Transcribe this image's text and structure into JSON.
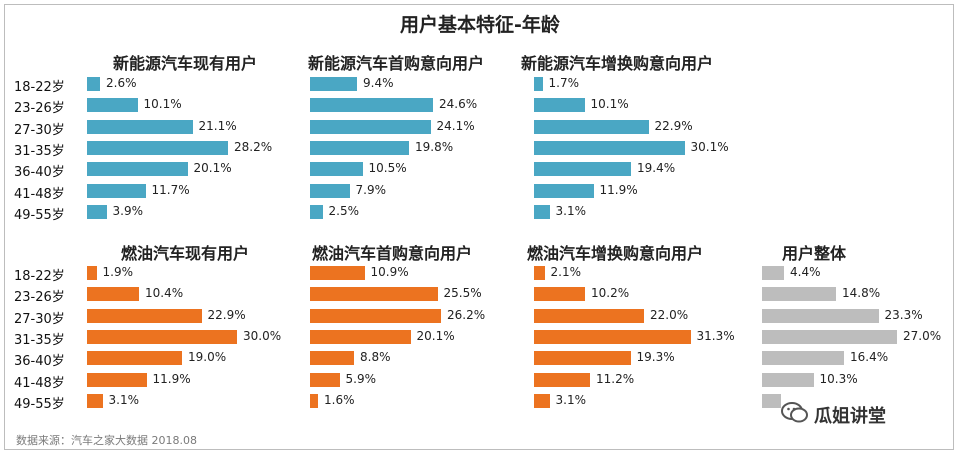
{
  "title": "用户基本特征-年龄",
  "source": "数据来源：汽车之家大数据 2018.08",
  "watermark": "瓜姐讲堂",
  "chart_data": [
    {
      "type": "bar",
      "title": "新能源汽车现有用户",
      "color": "#4aa7c4",
      "categories": [
        "18-22岁",
        "23-26岁",
        "27-30岁",
        "31-35岁",
        "36-40岁",
        "41-48岁",
        "49-55岁"
      ],
      "values": [
        2.6,
        10.1,
        21.1,
        28.2,
        20.1,
        11.7,
        3.9
      ],
      "value_labels": [
        "2.6%",
        "10.1%",
        "21.1%",
        "28.2%",
        "20.1%",
        "11.7%",
        "3.9%"
      ]
    },
    {
      "type": "bar",
      "title": "新能源汽车首购意向用户",
      "color": "#4aa7c4",
      "categories": [
        "18-22岁",
        "23-26岁",
        "27-30岁",
        "31-35岁",
        "36-40岁",
        "41-48岁",
        "49-55岁"
      ],
      "values": [
        9.4,
        24.6,
        24.1,
        19.8,
        10.5,
        7.9,
        2.5
      ],
      "value_labels": [
        "9.4%",
        "24.6%",
        "24.1%",
        "19.8%",
        "10.5%",
        "7.9%",
        "2.5%"
      ]
    },
    {
      "type": "bar",
      "title": "新能源汽车增换购意向用户",
      "color": "#4aa7c4",
      "categories": [
        "18-22岁",
        "23-26岁",
        "27-30岁",
        "31-35岁",
        "36-40岁",
        "41-48岁",
        "49-55岁"
      ],
      "values": [
        1.7,
        10.1,
        22.9,
        30.1,
        19.4,
        11.9,
        3.1
      ],
      "value_labels": [
        "1.7%",
        "10.1%",
        "22.9%",
        "30.1%",
        "19.4%",
        "11.9%",
        "3.1%"
      ]
    },
    {
      "type": "bar",
      "title": "燃油汽车现有用户",
      "color": "#ec7320",
      "categories": [
        "18-22岁",
        "23-26岁",
        "27-30岁",
        "31-35岁",
        "36-40岁",
        "41-48岁",
        "49-55岁"
      ],
      "values": [
        1.9,
        10.4,
        22.9,
        30.0,
        19.0,
        11.9,
        3.1
      ],
      "value_labels": [
        "1.9%",
        "10.4%",
        "22.9%",
        "30.0%",
        "19.0%",
        "11.9%",
        "3.1%"
      ]
    },
    {
      "type": "bar",
      "title": "燃油汽车首购意向用户",
      "color": "#ec7320",
      "categories": [
        "18-22岁",
        "23-26岁",
        "27-30岁",
        "31-35岁",
        "36-40岁",
        "41-48岁",
        "49-55岁"
      ],
      "values": [
        10.9,
        25.5,
        26.2,
        20.1,
        8.8,
        5.9,
        1.6
      ],
      "value_labels": [
        "10.9%",
        "25.5%",
        "26.2%",
        "20.1%",
        "8.8%",
        "5.9%",
        "1.6%"
      ]
    },
    {
      "type": "bar",
      "title": "燃油汽车增换购意向用户",
      "color": "#ec7320",
      "categories": [
        "18-22岁",
        "23-26岁",
        "27-30岁",
        "31-35岁",
        "36-40岁",
        "41-48岁",
        "49-55岁"
      ],
      "values": [
        2.1,
        10.2,
        22.0,
        31.3,
        19.3,
        11.2,
        3.1
      ],
      "value_labels": [
        "2.1%",
        "10.2%",
        "22.0%",
        "31.3%",
        "19.3%",
        "11.2%",
        "3.1%"
      ]
    },
    {
      "type": "bar",
      "title": "用户整体",
      "color": "#bdbdbd",
      "categories": [
        "18-22岁",
        "23-26岁",
        "27-30岁",
        "31-35岁",
        "36-40岁",
        "41-48岁",
        "49-55岁"
      ],
      "values": [
        4.4,
        14.8,
        23.3,
        27.0,
        16.4,
        10.3,
        3.8
      ],
      "value_labels": [
        "4.4%",
        "14.8%",
        "23.3%",
        "27.0%",
        "16.4%",
        "10.3%",
        ""
      ]
    }
  ]
}
